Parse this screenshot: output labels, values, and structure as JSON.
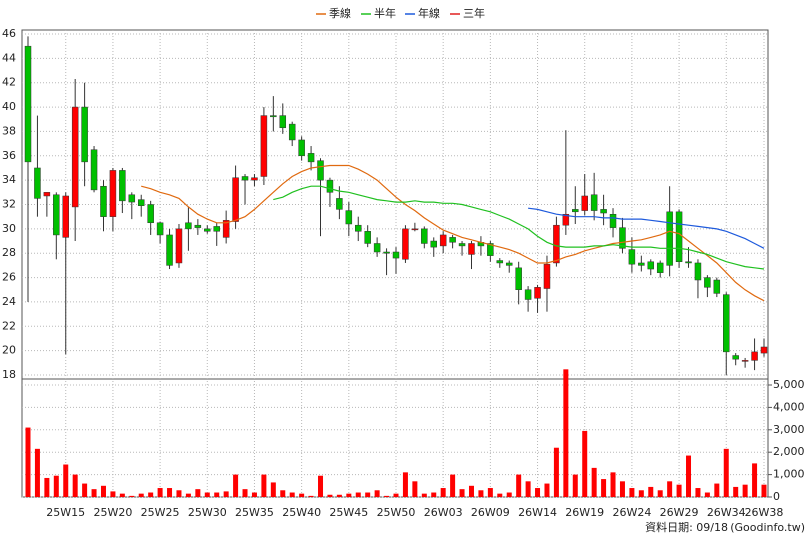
{
  "chart_data": {
    "type": "candlestick",
    "categories": [
      null,
      null,
      null,
      null,
      "25W15",
      null,
      null,
      null,
      null,
      "25W20",
      null,
      null,
      null,
      null,
      "25W25",
      null,
      null,
      null,
      null,
      "25W30",
      null,
      null,
      null,
      null,
      "25W35",
      null,
      null,
      null,
      null,
      "25W40",
      null,
      null,
      null,
      null,
      "25W45",
      null,
      null,
      null,
      null,
      "25W50",
      null,
      null,
      null,
      null,
      "26W03",
      null,
      null,
      null,
      null,
      "26W09",
      null,
      null,
      null,
      null,
      "26W14",
      null,
      null,
      null,
      null,
      "26W19",
      null,
      null,
      null,
      null,
      "26W24",
      null,
      null,
      null,
      null,
      "26W29",
      null,
      null,
      null,
      null,
      "26W34",
      null,
      null,
      null,
      "26W38"
    ],
    "open": [
      45,
      35,
      32.7,
      32.8,
      29.3,
      31.8,
      40,
      36.5,
      33.5,
      31,
      34.8,
      32.8,
      32.4,
      32,
      30.5,
      29.5,
      27.2,
      30.5,
      30.3,
      30,
      30.2,
      29.3,
      30.6,
      34.3,
      34,
      34.3,
      39.3,
      39.3,
      38.6,
      37.3,
      36.2,
      35.6,
      34,
      32.5,
      31.5,
      30.3,
      29.8,
      28.8,
      28.1,
      28.1,
      27.5,
      30,
      30,
      29,
      28.6,
      29.3,
      28.8,
      27.9,
      28.9,
      28.8,
      27.4,
      27.2,
      26.8,
      25,
      24.3,
      25.1,
      27.2,
      30.3,
      31.6,
      31.5,
      32.8,
      31.6,
      31.2,
      30.1,
      28.3,
      27.2,
      27.3,
      27.2,
      31.4,
      31.4,
      27.3,
      27.2,
      26,
      25.8,
      24.6,
      19.6,
      19.2,
      19.2,
      19.8
    ],
    "high": [
      45.8,
      39.3,
      33,
      33,
      33,
      42.3,
      42,
      36.8,
      34,
      35,
      35,
      33,
      32.8,
      32.3,
      30.6,
      30,
      30.4,
      31.8,
      30.8,
      30.3,
      30.5,
      31.5,
      35.2,
      34.5,
      34.5,
      40,
      40.9,
      40.3,
      38.8,
      37.6,
      36.8,
      35.8,
      34.2,
      33.5,
      32.2,
      31,
      30.3,
      29.3,
      28.4,
      28.5,
      30.3,
      30.5,
      30.2,
      29.3,
      29.8,
      29.5,
      29,
      29,
      29.4,
      29,
      27.6,
      27.4,
      27.3,
      25.3,
      25.4,
      27.8,
      31,
      38.1,
      33.5,
      34.5,
      34.6,
      32.8,
      31.7,
      30.9,
      29.3,
      27.8,
      27.5,
      27.4,
      33.5,
      31.6,
      28.5,
      27.5,
      26.2,
      26,
      24.8,
      19.8,
      19.4,
      21,
      21
    ],
    "low": [
      24,
      31,
      31,
      27.5,
      19.7,
      29,
      33.5,
      33,
      29.8,
      29.8,
      31.3,
      30.8,
      31,
      29.5,
      28.8,
      26.7,
      26.8,
      28.2,
      29.5,
      29.6,
      28.6,
      28.8,
      30,
      32,
      33.5,
      33.6,
      38,
      37.8,
      36.8,
      35.6,
      34.8,
      29.4,
      31.8,
      30.8,
      29.4,
      29,
      28.5,
      27.7,
      26.2,
      26.3,
      27.2,
      29.8,
      28.4,
      27.7,
      28,
      28.4,
      27.8,
      26.7,
      27.8,
      27.3,
      26.8,
      26.4,
      23.8,
      23.2,
      23.1,
      23.2,
      26.9,
      29.5,
      30.4,
      31.1,
      30.7,
      30.3,
      29.3,
      28,
      26.4,
      26.5,
      26.2,
      26,
      26.1,
      26.8,
      26.8,
      24.3,
      24.4,
      24.4,
      18,
      18.8,
      18.6,
      18.4,
      19.5
    ],
    "close": [
      35.5,
      32.5,
      33,
      29.5,
      32.7,
      40,
      35.5,
      33.2,
      31,
      34.8,
      32.3,
      32.2,
      31.9,
      30.5,
      29.5,
      27,
      30,
      30,
      30.1,
      29.8,
      29.8,
      30.7,
      34.2,
      34,
      34.2,
      39.3,
      39.2,
      38.3,
      37.3,
      36,
      35.5,
      34,
      33,
      31.6,
      30.4,
      29.8,
      28.8,
      28.1,
      28,
      27.6,
      30,
      30,
      28.8,
      28.5,
      29.5,
      28.9,
      28.6,
      28.8,
      28.6,
      27.8,
      27.2,
      27,
      25,
      24.2,
      25.2,
      27.1,
      30.3,
      31.2,
      31.4,
      32.7,
      31.5,
      31.3,
      30.1,
      28.4,
      27.1,
      27,
      26.7,
      26.4,
      27,
      27.3,
      27.2,
      25.8,
      25.2,
      24.7,
      19.9,
      19.3,
      19.2,
      19.9,
      20.3
    ],
    "up_color": "#ff0000",
    "down_color": "#00c000",
    "ylim": [
      18,
      46
    ],
    "yticks": [
      18,
      20,
      22,
      24,
      26,
      28,
      30,
      32,
      34,
      36,
      38,
      40,
      42,
      44,
      46
    ],
    "volume": [
      3100,
      2150,
      850,
      950,
      1450,
      1000,
      600,
      350,
      500,
      250,
      150,
      50,
      150,
      200,
      400,
      400,
      300,
      150,
      350,
      200,
      200,
      250,
      1000,
      350,
      200,
      1000,
      650,
      300,
      200,
      150,
      50,
      950,
      100,
      100,
      150,
      200,
      200,
      300,
      50,
      150,
      1100,
      700,
      150,
      200,
      400,
      1000,
      350,
      500,
      300,
      400,
      150,
      200,
      1000,
      700,
      400,
      600,
      2200,
      5700,
      1000,
      2950,
      1300,
      800,
      1100,
      700,
      400,
      300,
      450,
      300,
      700,
      550,
      1850,
      400,
      200,
      600,
      2150,
      450,
      550,
      1500,
      550
    ],
    "volume_color": "#ff0000",
    "y2lim": [
      0,
      5000
    ],
    "y2ticks": [
      0,
      {
        "value": 1000,
        "label": "1,000"
      },
      {
        "value": 2000,
        "label": "2,000"
      },
      {
        "value": 3000,
        "label": "3,000"
      },
      {
        "value": 4000,
        "label": "4,000"
      },
      {
        "value": 5000,
        "label": "5,000"
      }
    ],
    "grid": true,
    "legend": "top",
    "series": [
      {
        "name": "季線",
        "color": "#e06a10",
        "values": [
          null,
          null,
          null,
          null,
          null,
          null,
          null,
          null,
          null,
          null,
          null,
          null,
          33.5,
          33.3,
          33.0,
          32.8,
          32.5,
          31.8,
          31.2,
          30.8,
          30.5,
          30.5,
          30.7,
          31.0,
          31.6,
          32.3,
          33.0,
          33.7,
          34.3,
          34.7,
          35.0,
          35.1,
          35.2,
          35.2,
          35.2,
          34.9,
          34.5,
          34.0,
          33.3,
          32.6,
          32.0,
          31.5,
          30.9,
          30.4,
          29.9,
          29.6,
          29.3,
          29.1,
          28.9,
          28.7,
          28.5,
          28.3,
          28.0,
          27.6,
          27.2,
          27.2,
          27.4,
          27.7,
          27.9,
          28.2,
          28.4,
          28.6,
          28.8,
          28.9,
          29.0,
          29.1,
          29.3,
          29.5,
          29.8,
          29.6,
          29.0,
          28.4,
          27.8,
          27.2,
          26.4,
          25.6,
          25.0,
          24.5,
          24.1
        ]
      },
      {
        "name": "半年",
        "color": "#20c020",
        "values": [
          null,
          null,
          null,
          null,
          null,
          null,
          null,
          null,
          null,
          null,
          null,
          null,
          null,
          null,
          null,
          null,
          null,
          null,
          null,
          null,
          null,
          null,
          null,
          null,
          null,
          null,
          32.4,
          32.6,
          33.0,
          33.3,
          33.5,
          33.5,
          33.3,
          33.1,
          33.0,
          32.8,
          32.6,
          32.4,
          32.3,
          32.2,
          32.2,
          32.3,
          32.2,
          32.2,
          32.1,
          32.1,
          32.0,
          31.8,
          31.6,
          31.4,
          31.1,
          30.8,
          30.4,
          30.0,
          29.4,
          28.9,
          28.6,
          28.5,
          28.5,
          28.5,
          28.6,
          28.6,
          28.7,
          28.6,
          28.5,
          28.5,
          28.5,
          28.4,
          28.4,
          28.4,
          28.3,
          28.1,
          27.9,
          27.6,
          27.3,
          27.1,
          26.9,
          26.8,
          26.7
        ]
      },
      {
        "name": "年線",
        "color": "#1e5adc",
        "values": [
          null,
          null,
          null,
          null,
          null,
          null,
          null,
          null,
          null,
          null,
          null,
          null,
          null,
          null,
          null,
          null,
          null,
          null,
          null,
          null,
          null,
          null,
          null,
          null,
          null,
          null,
          null,
          null,
          null,
          null,
          null,
          null,
          null,
          null,
          null,
          null,
          null,
          null,
          null,
          null,
          null,
          null,
          null,
          null,
          null,
          null,
          null,
          null,
          null,
          null,
          null,
          null,
          null,
          31.7,
          31.6,
          31.4,
          31.2,
          31.1,
          31.0,
          31.0,
          31.0,
          30.9,
          30.9,
          30.8,
          30.8,
          30.8,
          30.7,
          30.6,
          30.5,
          30.4,
          30.3,
          30.2,
          30.1,
          30.0,
          29.8,
          29.5,
          29.2,
          28.8,
          28.4
        ]
      },
      {
        "name": "三年",
        "color": "#e02020",
        "values": [
          null,
          null,
          null,
          null,
          null,
          null,
          null,
          null,
          null,
          null,
          null,
          null,
          null,
          null,
          null,
          null,
          null,
          null,
          null,
          null,
          null,
          null,
          null,
          null,
          null,
          null,
          null,
          null,
          null,
          null,
          null,
          null,
          null,
          null,
          null,
          null,
          null,
          null,
          null,
          null,
          null,
          null,
          null,
          null,
          null,
          null,
          null,
          null,
          null,
          null,
          null,
          null,
          null,
          null,
          null,
          null,
          null,
          null,
          null,
          null,
          null,
          null,
          null,
          null,
          null,
          null,
          null,
          null,
          null,
          null,
          null,
          null,
          null,
          null,
          null,
          null,
          null,
          null,
          null
        ]
      }
    ],
    "footer_date": "資料日期: 09/18",
    "footer_source": "(Goodinfo.tw)"
  }
}
